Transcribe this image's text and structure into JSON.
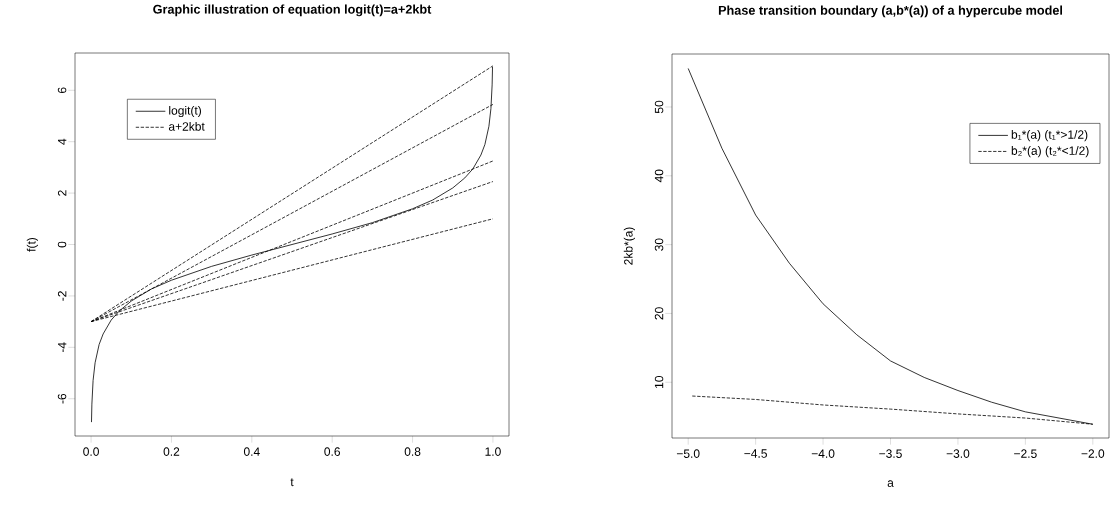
{
  "chart_data": [
    {
      "type": "line",
      "title": "Graphic illustration of equation logit(t)=a+2kbt",
      "xlabel": "t",
      "ylabel": "f(t)",
      "xlim": [
        -0.04,
        1.04
      ],
      "ylim": [
        -7.45,
        7.45
      ],
      "xticks": [
        {
          "value": 0,
          "label": "0.0"
        },
        0.2,
        0.4,
        0.6,
        0.8,
        {
          "value": 1,
          "label": "1.0"
        }
      ],
      "yticks": [
        -6,
        -4,
        -2,
        0,
        2,
        4,
        6
      ],
      "legend": "top left",
      "grid": false,
      "series": [
        {
          "name": "logit(t)",
          "color": "#000000",
          "line_style": "solid",
          "x": [
            0.001,
            0.002,
            0.005,
            0.01,
            0.02,
            0.03,
            0.05,
            0.07,
            0.1,
            0.15,
            0.2,
            0.3,
            0.4,
            0.5,
            0.6,
            0.7,
            0.8,
            0.85,
            0.9,
            0.93,
            0.95,
            0.97,
            0.98,
            0.99,
            0.995,
            0.998,
            0.999
          ],
          "values": [
            -6.91,
            -6.21,
            -5.29,
            -4.6,
            -3.89,
            -3.48,
            -2.94,
            -2.59,
            -2.2,
            -1.73,
            -1.39,
            -0.85,
            -0.41,
            0,
            0.41,
            0.85,
            1.39,
            1.73,
            2.2,
            2.59,
            2.94,
            3.48,
            3.89,
            4.6,
            5.29,
            6.21,
            6.91
          ]
        },
        {
          "name": "a+2kbt",
          "color": "#000000",
          "line_style": "dashed",
          "x": [
            0,
            1
          ],
          "values": [
            -3,
            6.95
          ]
        },
        {
          "color": "#000000",
          "line_style": "dashed",
          "x": [
            0,
            1
          ],
          "values": [
            -3,
            5.45
          ]
        },
        {
          "color": "#000000",
          "line_style": "dashed",
          "x": [
            0,
            1
          ],
          "values": [
            -3,
            3.25
          ]
        },
        {
          "color": "#000000",
          "line_style": "dashed",
          "x": [
            0,
            1
          ],
          "values": [
            -3,
            2.45
          ]
        },
        {
          "color": "#000000",
          "line_style": "dashed",
          "x": [
            0,
            1
          ],
          "values": [
            -3,
            1.0
          ]
        }
      ]
    },
    {
      "type": "line",
      "title": "Phase transition boundary (a,b*(a)) of a hypercube model",
      "xlabel": "a",
      "ylabel": "2kb*(a)",
      "xlim": [
        -5.12,
        -1.88
      ],
      "ylim": [
        1.9,
        57.7
      ],
      "xticks": [
        {
          "value": -5,
          "label": "−5.0"
        },
        {
          "value": -4.5,
          "label": "−4.5"
        },
        {
          "value": -4,
          "label": "−4.0"
        },
        {
          "value": -3.5,
          "label": "−3.5"
        },
        {
          "value": -3,
          "label": "−3.0"
        },
        {
          "value": -2.5,
          "label": "−2.5"
        },
        {
          "value": -2,
          "label": "−2.0"
        }
      ],
      "yticks": [
        10,
        20,
        30,
        40,
        50
      ],
      "legend": "top right",
      "grid": false,
      "series": [
        {
          "name": "b₁*(a) (t₁*>1/2)",
          "color": "#000000",
          "line_style": "solid",
          "x": [
            -5,
            -4.75,
            -4.5,
            -4.25,
            -4,
            -3.75,
            -3.5,
            -3.25,
            -3,
            -2.75,
            -2.5,
            -2.25,
            -2
          ],
          "values": [
            55.6,
            44,
            34.3,
            27.3,
            21.4,
            16.9,
            13.1,
            10.7,
            8.8,
            7.1,
            5.7,
            4.8,
            3.9
          ]
        },
        {
          "name": "b₂*(a) (t₂*<1/2)",
          "color": "#000000",
          "line_style": "dashed",
          "x": [
            -4.97,
            -4.5,
            -4,
            -3.5,
            -3,
            -2.5,
            -2
          ],
          "values": [
            8.0,
            7.5,
            6.7,
            6.1,
            5.4,
            4.8,
            3.9
          ]
        }
      ]
    }
  ]
}
